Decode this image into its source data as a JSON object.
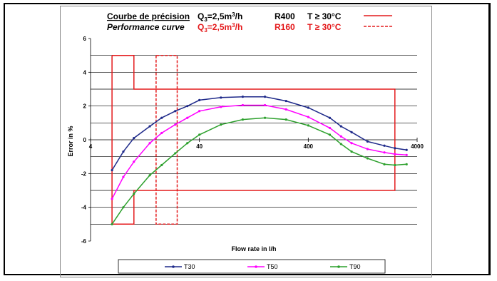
{
  "header": {
    "row1": {
      "title": "Courbe de précision",
      "q_label": "Q",
      "q_sub": "3",
      "q_value": "=2,5m",
      "q_sup": "3",
      "q_unit": "/h",
      "ratio": "R400",
      "temp": "T ≥ 30°C",
      "color": "#000000",
      "line_style": "solid",
      "line_color": "#e41a1c"
    },
    "row2": {
      "title": "Performance curve",
      "q_label": "Q",
      "q_sub": "3",
      "q_value": "=2,5m",
      "q_sup": "3",
      "q_unit": "/h",
      "ratio": "R160",
      "temp": "T ≥ 30°C",
      "color": "#e41a1c",
      "line_style": "dashed",
      "line_color": "#e41a1c"
    }
  },
  "chart_data": {
    "type": "line",
    "xlabel": "Flow rate in l/h",
    "ylabel": "Error in %",
    "xscale": "log",
    "xlim": [
      4,
      4000
    ],
    "ylim": [
      -6,
      6
    ],
    "xticks": [
      "4",
      "40",
      "400",
      "4000"
    ],
    "yticks": [
      "6",
      "4",
      "2",
      "0",
      "-2",
      "-4",
      "-6"
    ],
    "grid": "horizontal",
    "legend_position": "bottom",
    "series": [
      {
        "name": "T30",
        "color": "#1f2a8a",
        "x": [
          6.3,
          8,
          10,
          14,
          18,
          24,
          31,
          40,
          63,
          100,
          160,
          250,
          400,
          630,
          800,
          1000,
          1400,
          2000,
          2500,
          3200
        ],
        "y": [
          -1.8,
          -0.7,
          0.1,
          0.8,
          1.3,
          1.7,
          2.0,
          2.35,
          2.5,
          2.55,
          2.55,
          2.3,
          1.9,
          1.3,
          0.8,
          0.45,
          -0.1,
          -0.35,
          -0.5,
          -0.6
        ]
      },
      {
        "name": "T50",
        "color": "#ff00ff",
        "x": [
          6.3,
          8,
          10,
          14,
          18,
          24,
          31,
          40,
          63,
          100,
          160,
          250,
          400,
          630,
          800,
          1000,
          1400,
          2000,
          2500,
          3200
        ],
        "y": [
          -3.5,
          -2.2,
          -1.3,
          -0.2,
          0.4,
          0.9,
          1.3,
          1.7,
          1.95,
          2.05,
          2.05,
          1.8,
          1.35,
          0.7,
          0.2,
          -0.2,
          -0.55,
          -0.75,
          -0.85,
          -0.9
        ]
      },
      {
        "name": "T90",
        "color": "#2ca02c",
        "x": [
          6.3,
          8,
          10,
          14,
          18,
          24,
          31,
          40,
          63,
          100,
          160,
          250,
          400,
          630,
          800,
          1000,
          1400,
          2000,
          2500,
          3200
        ],
        "y": [
          -5.0,
          -4.0,
          -3.2,
          -2.1,
          -1.5,
          -0.8,
          -0.2,
          0.3,
          0.9,
          1.2,
          1.3,
          1.2,
          0.85,
          0.3,
          -0.25,
          -0.7,
          -1.1,
          -1.45,
          -1.5,
          -1.45
        ]
      }
    ],
    "envelopes": [
      {
        "style": "solid",
        "color": "#e41a1c",
        "x": [
          6.3,
          6.3,
          10,
          10,
          2500,
          2500,
          10,
          10,
          6.3
        ],
        "y": [
          5,
          -5,
          -5,
          -3,
          -3,
          3,
          3,
          5,
          5
        ]
      },
      {
        "style": "dashed",
        "color": "#e41a1c",
        "x": [
          16,
          16,
          25,
          25,
          16
        ],
        "y": [
          5,
          -5,
          -5,
          5,
          5
        ]
      }
    ],
    "grid_y": [
      -5,
      -4,
      -3,
      -2,
      -1,
      1,
      2,
      3,
      4,
      5
    ]
  }
}
